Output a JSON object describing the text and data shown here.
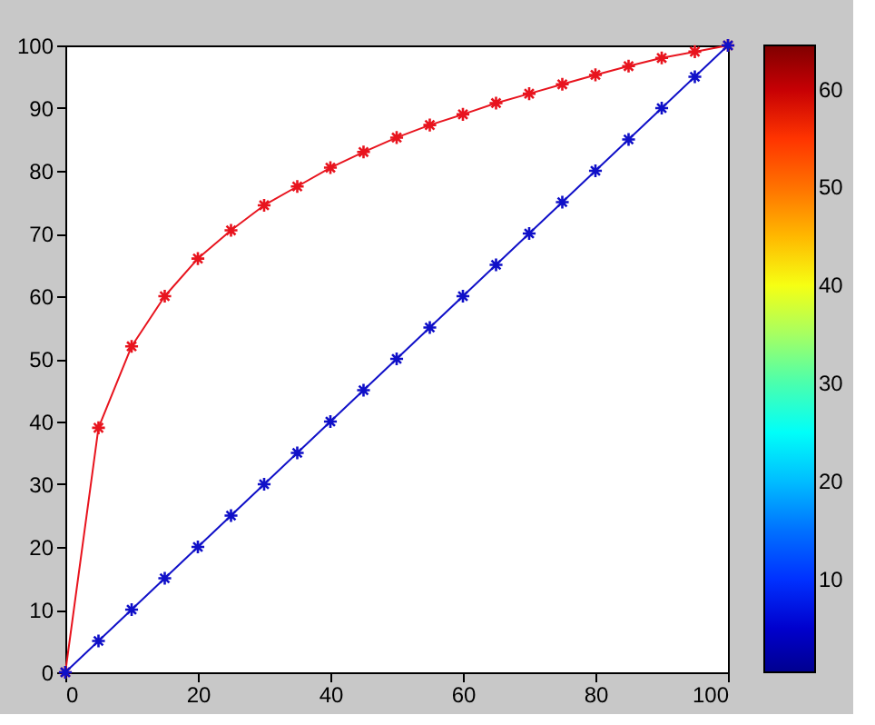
{
  "chart_data": {
    "type": "line",
    "x": [
      0,
      5,
      10,
      15,
      20,
      25,
      30,
      35,
      40,
      45,
      50,
      55,
      60,
      65,
      70,
      75,
      80,
      85,
      90,
      95,
      100
    ],
    "series": [
      {
        "color": "#e8141e",
        "values": [
          0,
          39,
          52,
          60,
          66,
          70.5,
          74.5,
          77.5,
          80.5,
          83,
          85.3,
          87.3,
          89,
          90.8,
          92.3,
          93.8,
          95.3,
          96.7,
          98,
          99,
          100
        ]
      },
      {
        "color": "#1010c8",
        "values": [
          0,
          5,
          10,
          15,
          20,
          25,
          30,
          35,
          40,
          45,
          50,
          55,
          60,
          65,
          70,
          75,
          80,
          85,
          90,
          95,
          100
        ]
      }
    ],
    "xlim": [
      0,
      100
    ],
    "xticks": [
      0,
      20,
      40,
      60,
      80,
      100
    ],
    "ylim": [
      0,
      100
    ],
    "yticks": [
      0,
      10,
      20,
      30,
      40,
      50,
      60,
      70,
      80,
      90,
      100
    ],
    "clim": [
      0.5,
      64.5
    ],
    "cticks": [
      10,
      20,
      30,
      40,
      50,
      60
    ],
    "marker": "cross",
    "line_style": "solid",
    "grid": false
  }
}
